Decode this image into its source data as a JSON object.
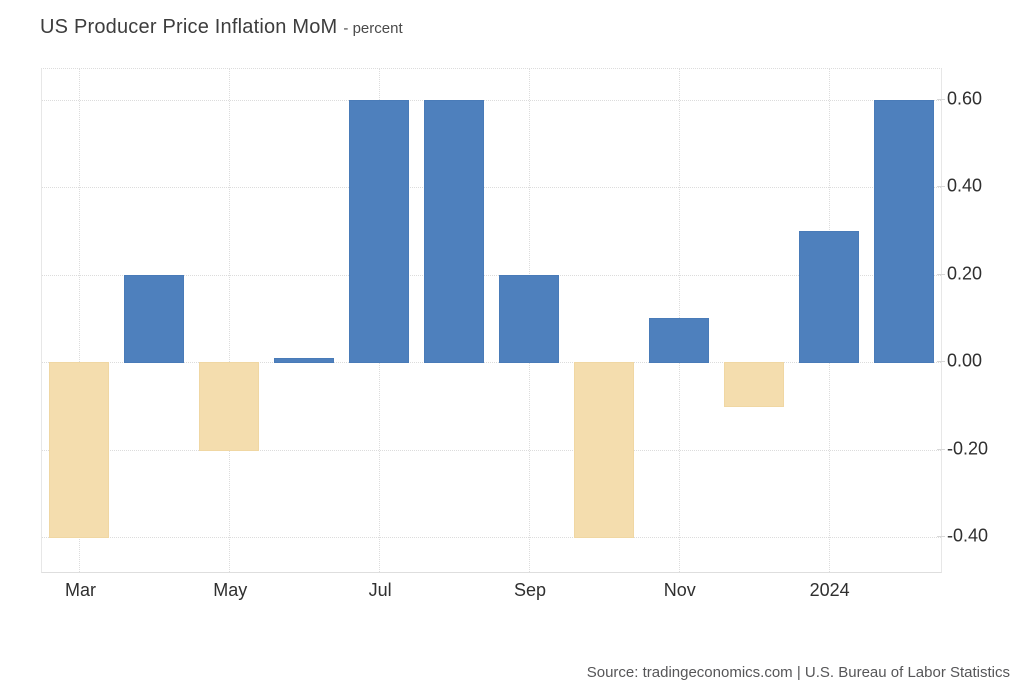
{
  "title": "US Producer Price Inflation MoM",
  "subtitle": "- percent",
  "source": "Source: tradingeconomics.com | U.S. Bureau of Labor Statistics",
  "chart_data": {
    "type": "bar",
    "title": "US Producer Price Inflation MoM",
    "unit": "percent",
    "categories": [
      "Mar 2023",
      "Apr 2023",
      "May 2023",
      "Jun 2023",
      "Jul 2023",
      "Aug 2023",
      "Sep 2023",
      "Oct 2023",
      "Nov 2023",
      "Dec 2023",
      "Jan 2024",
      "Feb 2024"
    ],
    "values": [
      -0.4,
      0.2,
      -0.2,
      0.01,
      0.6,
      0.6,
      0.2,
      -0.4,
      0.1,
      -0.1,
      0.3,
      0.6
    ],
    "xlabel": "",
    "ylabel": "",
    "ylim": [
      -0.48,
      0.67
    ],
    "y_ticks": [
      0.6,
      0.4,
      0.2,
      0.0,
      -0.2,
      -0.4
    ],
    "y_tick_labels": [
      "0.60",
      "0.40",
      "0.20",
      "0.00",
      "-0.20",
      "-0.40"
    ],
    "x_tick_labels": [
      "Mar",
      "May",
      "Jul",
      "Sep",
      "Nov",
      "2024"
    ],
    "x_tick_indices": [
      0,
      2,
      4,
      6,
      8,
      10
    ],
    "grid": true,
    "legend": "none",
    "y_axis_side": "right",
    "colors": {
      "positive_bar": "#4e80bd",
      "negative_bar": "#f4ddae",
      "grid": "#dcdcdc",
      "text": "#2f2f2f"
    }
  }
}
